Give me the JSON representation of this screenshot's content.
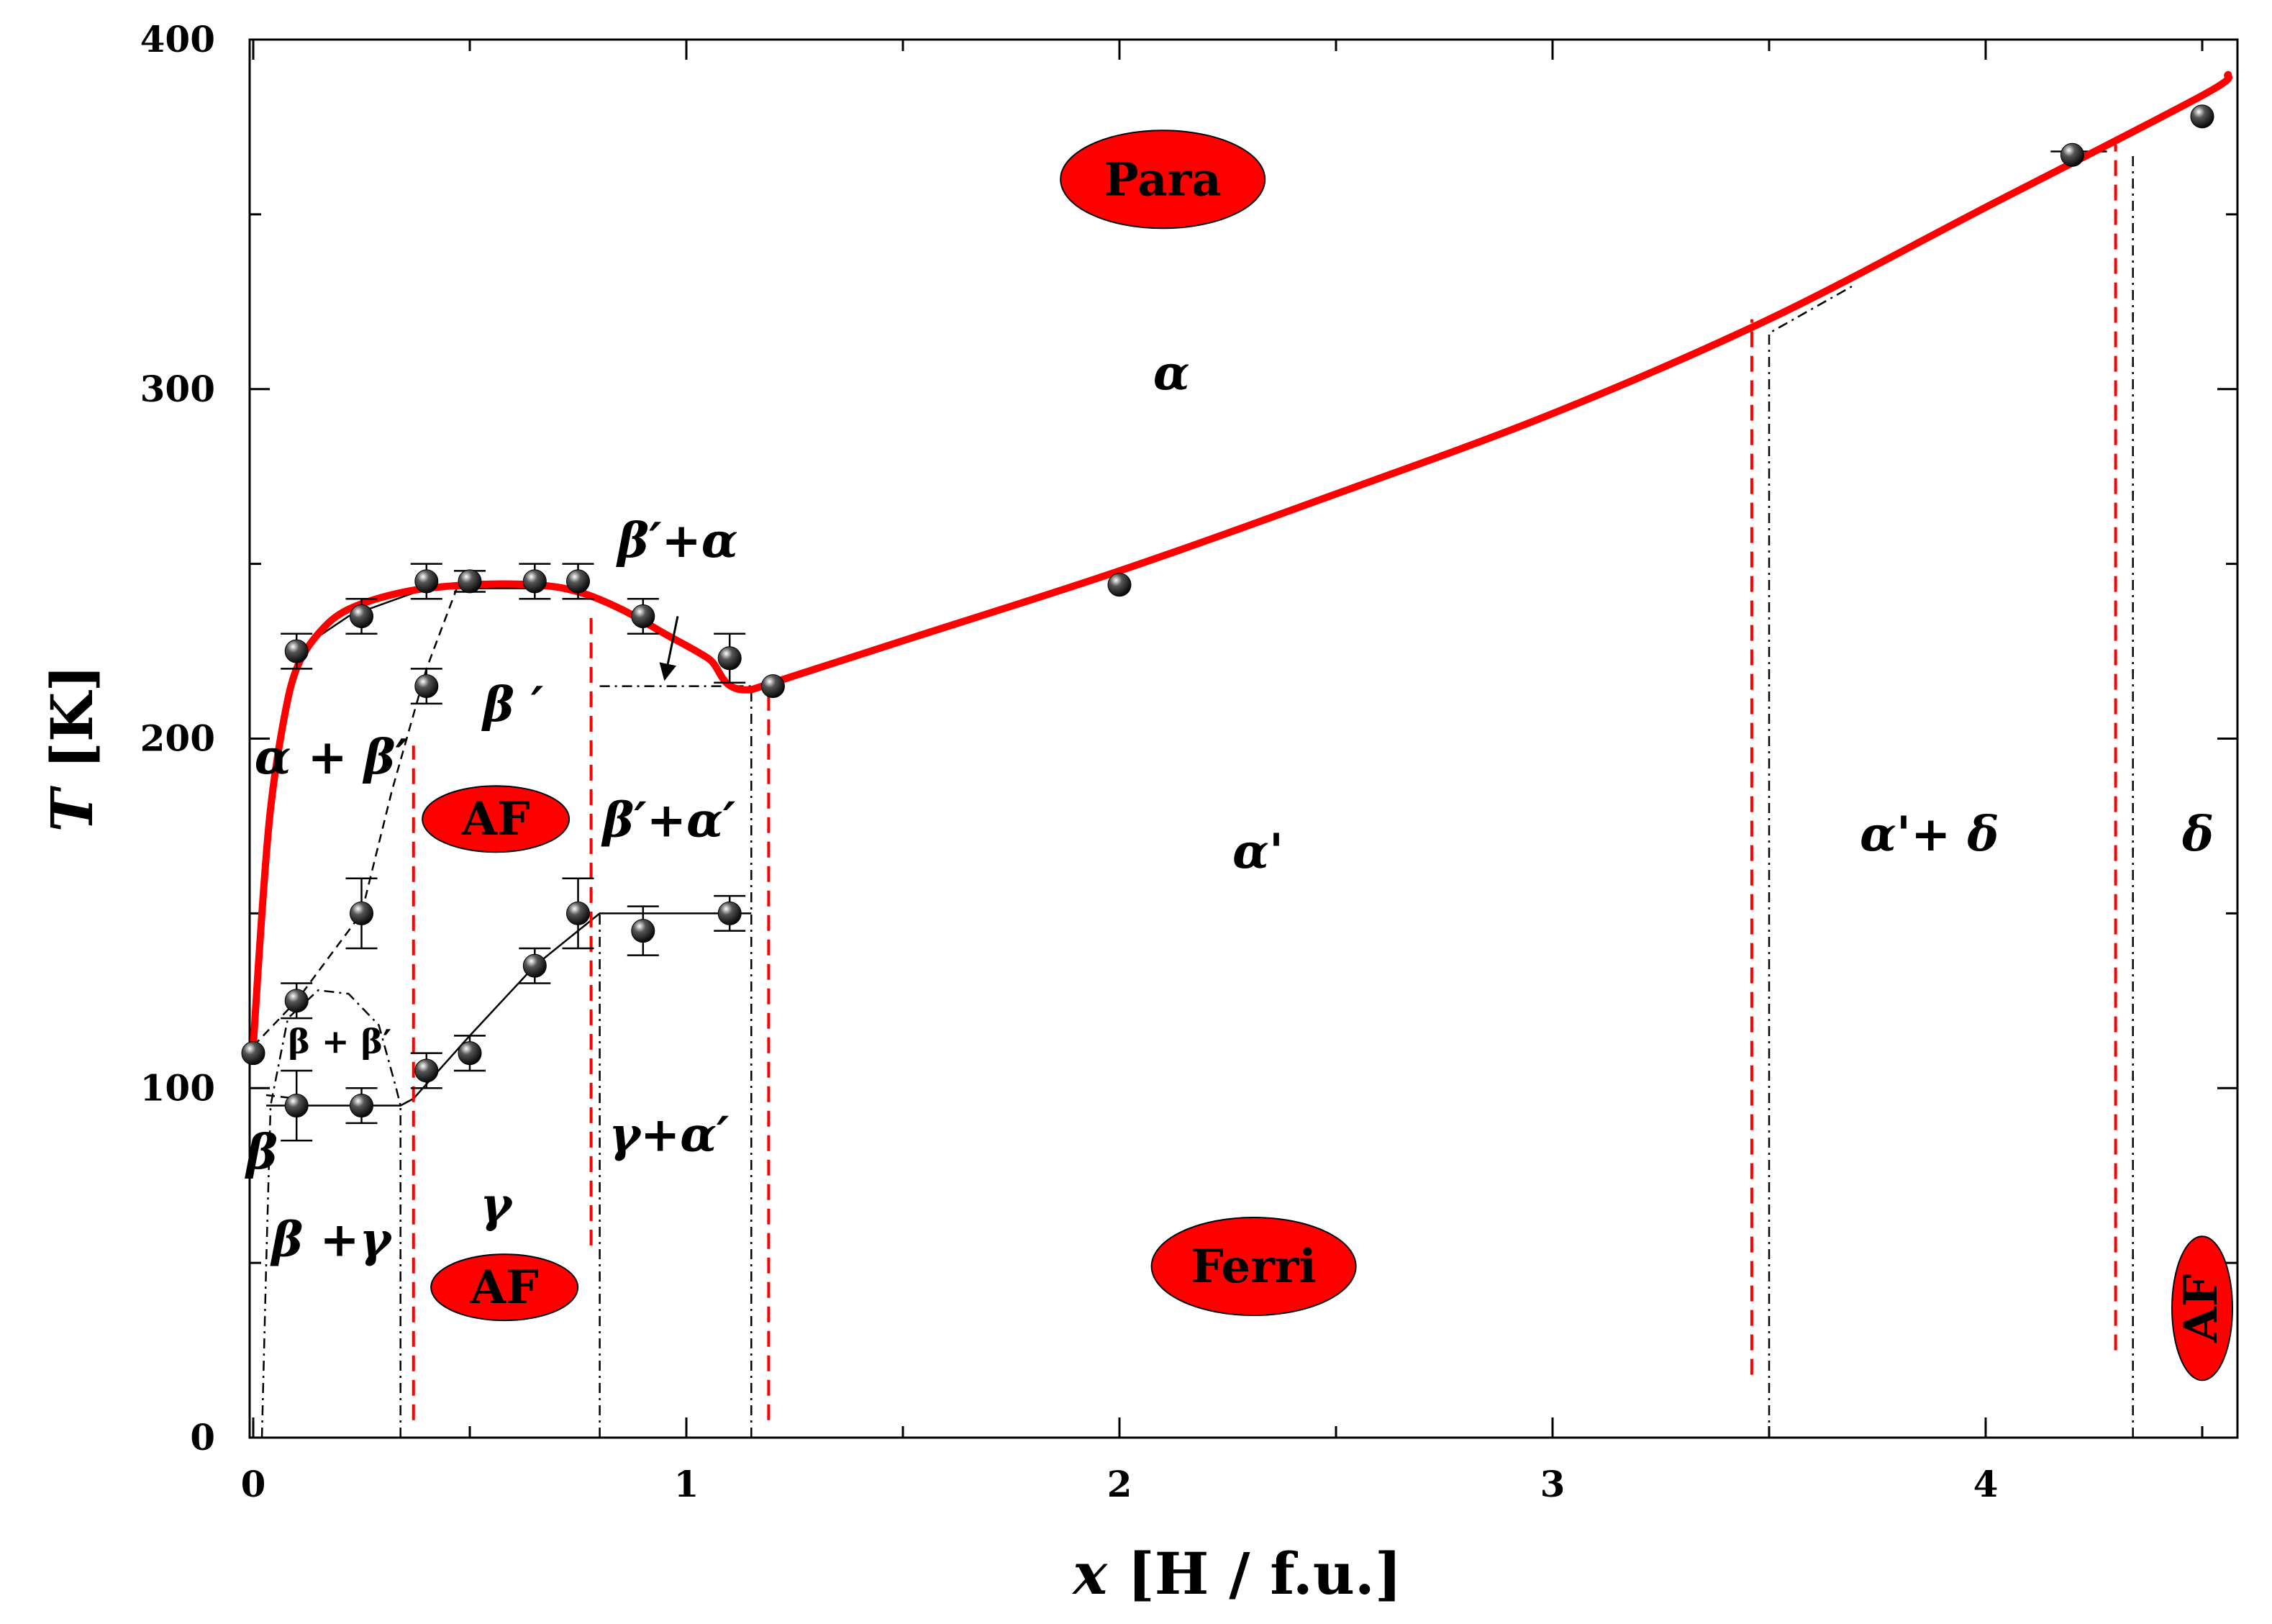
{
  "chart_data": {
    "type": "scatter",
    "title": "",
    "xlabel_var": "x",
    "xlabel_unit": " [H / f.u.]",
    "ylabel_var": "T",
    "ylabel_unit": " [K]",
    "xlim": [
      0,
      4.6
    ],
    "ylim": [
      0,
      400
    ],
    "x_ticks": [
      "0",
      "1",
      "2",
      "3",
      "4"
    ],
    "y_ticks": [
      "0",
      "100",
      "200",
      "300",
      "400"
    ],
    "colors": {
      "curve": "#ff0000",
      "badge_fill": "#ff0000",
      "marker": "#111111",
      "axis": "#000000"
    },
    "points": [
      {
        "x": 0.0,
        "y": 110,
        "err": 0
      },
      {
        "x": 0.1,
        "y": 225,
        "err": 5
      },
      {
        "x": 0.1,
        "y": 125,
        "err": 5
      },
      {
        "x": 0.1,
        "y": 95,
        "err": 10
      },
      {
        "x": 0.25,
        "y": 235,
        "err": 5
      },
      {
        "x": 0.25,
        "y": 150,
        "err": 10
      },
      {
        "x": 0.25,
        "y": 95,
        "err": 5
      },
      {
        "x": 0.4,
        "y": 245,
        "err": 5
      },
      {
        "x": 0.4,
        "y": 215,
        "err": 5
      },
      {
        "x": 0.4,
        "y": 105,
        "err": 5
      },
      {
        "x": 0.5,
        "y": 245,
        "err": 3
      },
      {
        "x": 0.5,
        "y": 110,
        "err": 5
      },
      {
        "x": 0.65,
        "y": 245,
        "err": 5
      },
      {
        "x": 0.65,
        "y": 135,
        "err": 5
      },
      {
        "x": 0.75,
        "y": 245,
        "err": 5
      },
      {
        "x": 0.75,
        "y": 150,
        "err": 10
      },
      {
        "x": 0.9,
        "y": 235,
        "err": 5
      },
      {
        "x": 0.9,
        "y": 145,
        "err": 7
      },
      {
        "x": 1.1,
        "y": 223,
        "err": 7
      },
      {
        "x": 1.1,
        "y": 150,
        "err": 5
      },
      {
        "x": 1.2,
        "y": 215,
        "err": 0
      },
      {
        "x": 2.0,
        "y": 244,
        "err": 0
      },
      {
        "x": 4.2,
        "y": 367,
        "err": 0
      },
      {
        "x": 4.5,
        "y": 378,
        "err": 0
      }
    ],
    "red_curve": [
      [
        0,
        112
      ],
      [
        0.02,
        150
      ],
      [
        0.04,
        180
      ],
      [
        0.07,
        205
      ],
      [
        0.1,
        220
      ],
      [
        0.15,
        230
      ],
      [
        0.22,
        237
      ],
      [
        0.35,
        242
      ],
      [
        0.5,
        244
      ],
      [
        0.65,
        244
      ],
      [
        0.75,
        242
      ],
      [
        0.85,
        237
      ],
      [
        0.95,
        230
      ],
      [
        1.05,
        223
      ],
      [
        1.15,
        214
      ],
      [
        1.5,
        228
      ],
      [
        2.0,
        248
      ],
      [
        2.5,
        270
      ],
      [
        3.0,
        293
      ],
      [
        3.5,
        320
      ],
      [
        4.0,
        352
      ],
      [
        4.5,
        384
      ],
      [
        4.56,
        390
      ]
    ],
    "red_dashed_lines": [
      {
        "x": 0.37,
        "y0": 5,
        "y1": 198
      },
      {
        "x": 0.78,
        "y0": 55,
        "y1": 235
      },
      {
        "x": 1.19,
        "y0": 5,
        "y1": 214
      },
      {
        "x": 3.46,
        "y0": 18,
        "y1": 320
      },
      {
        "x": 4.3,
        "y0": 25,
        "y1": 370
      }
    ],
    "black_boundaries": [
      {
        "style": "dashdot",
        "points": [
          [
            0.34,
            0
          ],
          [
            0.34,
            95
          ]
        ]
      },
      {
        "style": "dashdot",
        "points": [
          [
            0.8,
            0
          ],
          [
            0.8,
            150
          ]
        ]
      },
      {
        "style": "dashdot",
        "points": [
          [
            1.15,
            0
          ],
          [
            1.15,
            214
          ]
        ]
      },
      {
        "style": "dashdot",
        "points": [
          [
            0.8,
            215
          ],
          [
            1.15,
            215
          ]
        ]
      },
      {
        "style": "dashdot",
        "points": [
          [
            3.5,
            0
          ],
          [
            3.5,
            316
          ],
          [
            3.7,
            330
          ]
        ]
      },
      {
        "style": "dashdot",
        "points": [
          [
            4.34,
            0
          ],
          [
            4.34,
            368
          ]
        ]
      },
      {
        "style": "dashdot",
        "points": [
          [
            0.02,
            0
          ],
          [
            0.03,
            50
          ],
          [
            0.04,
            95
          ],
          [
            0.08,
            120
          ],
          [
            0.15,
            128
          ],
          [
            0.22,
            127
          ],
          [
            0.29,
            118
          ],
          [
            0.33,
            100
          ],
          [
            0.34,
            95
          ]
        ]
      },
      {
        "style": "dashed",
        "points": [
          [
            0.0,
            112
          ],
          [
            0.1,
            125
          ],
          [
            0.25,
            150
          ],
          [
            0.32,
            185
          ],
          [
            0.4,
            220
          ],
          [
            0.47,
            243
          ]
        ]
      },
      {
        "style": "dashed",
        "points": [
          [
            0.03,
            98
          ],
          [
            0.1,
            97
          ]
        ]
      },
      {
        "style": "solid",
        "points": [
          [
            0.03,
            95
          ],
          [
            0.34,
            95
          ],
          [
            0.37,
            97
          ],
          [
            0.5,
            115
          ],
          [
            0.65,
            135
          ],
          [
            0.8,
            150
          ],
          [
            1.15,
            150
          ]
        ]
      },
      {
        "style": "solid",
        "points": [
          [
            0.1,
            225
          ],
          [
            0.22,
            235
          ],
          [
            0.4,
            243
          ],
          [
            0.75,
            243
          ]
        ]
      },
      {
        "style": "solid",
        "points": [
          [
            4.15,
            368
          ],
          [
            4.28,
            368
          ]
        ]
      }
    ],
    "arrow_label": "β′+α",
    "arrow": {
      "from": [
        0.98,
        235
      ],
      "to": [
        0.95,
        217
      ]
    },
    "phase_labels": [
      {
        "text": "α",
        "x": 2.12,
        "y": 300
      },
      {
        "text": "α'",
        "x": 2.32,
        "y": 163
      },
      {
        "text": "α'+ δ",
        "x": 3.87,
        "y": 168
      },
      {
        "text": "δ",
        "x": 4.49,
        "y": 168
      },
      {
        "text": "β ′",
        "x": 0.6,
        "y": 205
      },
      {
        "text": "α + β′",
        "x": 0.18,
        "y": 190
      },
      {
        "text": "β′+α′",
        "x": 0.96,
        "y": 172
      },
      {
        "text": "γ+α′",
        "x": 0.96,
        "y": 82
      },
      {
        "text": "γ",
        "x": 0.56,
        "y": 62
      },
      {
        "text": "β  +γ",
        "x": 0.18,
        "y": 52
      },
      {
        "text": "β",
        "x": 0.02,
        "y": 77
      }
    ],
    "small_labels": [
      {
        "text": "β + β′",
        "x": 0.2,
        "y": 110
      }
    ],
    "badges": [
      {
        "text": "Para",
        "x": 2.1,
        "y": 360
      },
      {
        "text": "AF",
        "x": 0.56,
        "y": 177
      },
      {
        "text": "AF",
        "x": 0.58,
        "y": 43
      },
      {
        "text": "Ferri",
        "x": 2.31,
        "y": 49
      },
      {
        "text": "AF",
        "x": 4.5,
        "y": 37,
        "vertical": true
      }
    ]
  }
}
